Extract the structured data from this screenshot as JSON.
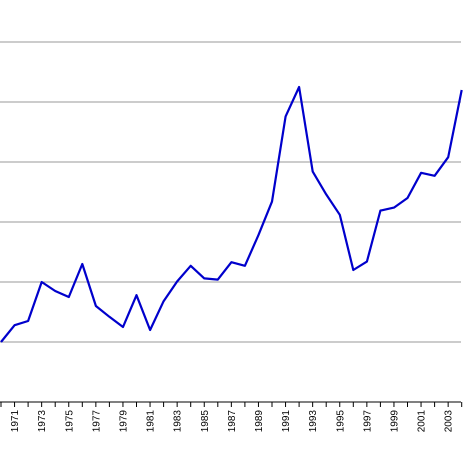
{
  "chart_data": {
    "type": "line",
    "title": "",
    "xlabel": "",
    "ylabel": "",
    "x": [
      1970,
      1971,
      1972,
      1973,
      1974,
      1975,
      1976,
      1977,
      1978,
      1979,
      1980,
      1981,
      1982,
      1983,
      1984,
      1985,
      1986,
      1987,
      1988,
      1989,
      1990,
      1991,
      1992,
      1993,
      1994,
      1995,
      1996,
      1997,
      1998,
      1999,
      2000,
      2001,
      2002,
      2003,
      2004
    ],
    "series": [
      {
        "color": "#0000cc",
        "values": [
          1.0,
          1.28,
          1.35,
          2.0,
          1.85,
          1.75,
          2.3,
          1.6,
          1.42,
          1.25,
          1.78,
          1.2,
          1.68,
          2.01,
          2.27,
          2.06,
          2.04,
          2.33,
          2.27,
          2.78,
          3.34,
          4.76,
          5.25,
          3.84,
          3.46,
          3.12,
          2.2,
          2.34,
          3.19,
          3.24,
          3.4,
          3.82,
          3.77,
          4.08,
          5.2
        ]
      }
    ],
    "x_tick_labels": [
      "1971",
      "1973",
      "1975",
      "1977",
      "1979",
      "1981",
      "1983",
      "1985",
      "1987",
      "1989",
      "1991",
      "1993",
      "1995",
      "1997",
      "1999",
      "2001",
      "2003"
    ],
    "ylim": [
      0,
      6.2
    ],
    "y_gridlines": [
      1,
      2,
      3,
      4,
      5,
      6
    ],
    "grid": "horizontal",
    "legend": "none",
    "axis_color": "#000000",
    "grid_color": "#999999"
  }
}
